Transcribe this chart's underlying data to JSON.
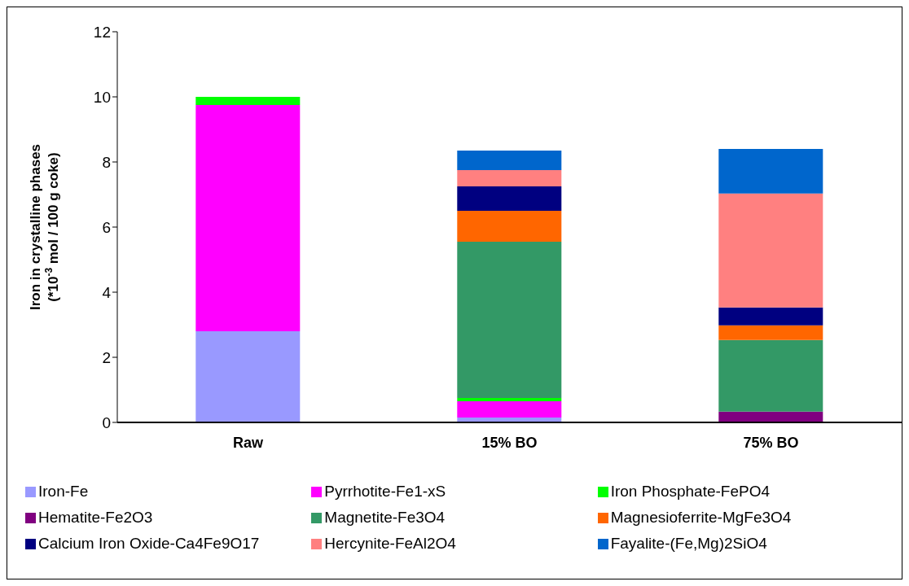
{
  "chart_data": {
    "type": "bar",
    "stacked": true,
    "ylabel": "Iron in crystalline phases\n(*10$^{-3}$ mol / 100 g coke)",
    "categories": [
      "Raw",
      "15% BO",
      "75% BO"
    ],
    "ylim": [
      0,
      12
    ],
    "yticks": [
      0,
      2,
      4,
      6,
      8,
      10,
      12
    ],
    "grid": false,
    "legend": "bottom",
    "series": [
      {
        "name": "Iron-Fe",
        "color": "#9999ff",
        "values": [
          2.8,
          0.15,
          0
        ]
      },
      {
        "name": "Pyrrhotite-Fe1-xS",
        "color": "#ff00ff",
        "values": [
          6.95,
          0.5,
          0
        ]
      },
      {
        "name": "Iron Phosphate-FePO4",
        "color": "#00ff00",
        "values": [
          0.25,
          0.1,
          0
        ]
      },
      {
        "name": "Hematite-Fe2O3",
        "color": "#800080",
        "values": [
          0,
          0,
          0.33
        ]
      },
      {
        "name": "Magnetite-Fe3O4",
        "color": "#339966",
        "values": [
          0,
          4.8,
          2.2
        ]
      },
      {
        "name": "Magnesioferrite-MgFe3O4",
        "color": "#ff6600",
        "values": [
          0,
          0.95,
          0.45
        ]
      },
      {
        "name": "Calcium Iron Oxide-Ca4Fe9O17",
        "color": "#000080",
        "values": [
          0,
          0.75,
          0.55
        ]
      },
      {
        "name": "Hercynite-FeAl2O4",
        "color": "#ff8080",
        "values": [
          0,
          0.5,
          3.5
        ]
      },
      {
        "name": "Fayalite-(Fe,Mg)2SiO4",
        "color": "#0066cc",
        "values": [
          0,
          0.6,
          1.37
        ]
      }
    ]
  }
}
